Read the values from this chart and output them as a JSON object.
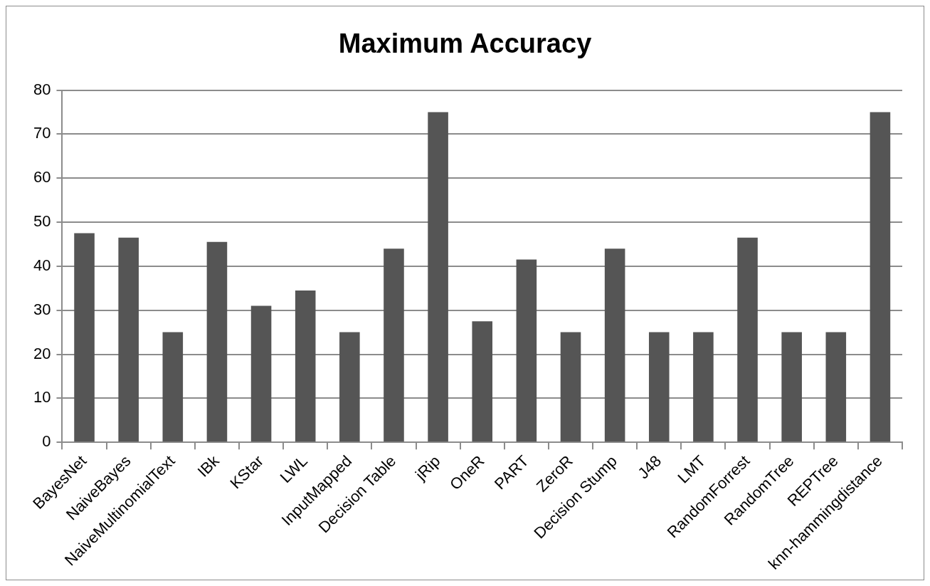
{
  "chart_data": {
    "type": "bar",
    "title": "Maximum Accuracy",
    "categories": [
      "BayesNet",
      "NaiveBayes",
      "NaiveMultinomialText",
      "IBk",
      "KStar",
      "LWL",
      "InputMapped",
      "Decision Table",
      "jRip",
      "OneR",
      "PART",
      "ZeroR",
      "Decision Stump",
      "J48",
      "LMT",
      "RandomForrest",
      "RandomTree",
      "REPTree",
      "knn-hammingdistance"
    ],
    "values": [
      47.5,
      46.5,
      25,
      45.5,
      31,
      34.5,
      25,
      44,
      75,
      27.5,
      41.5,
      25,
      44,
      25,
      25,
      46.5,
      25,
      25,
      75
    ],
    "color": "#555555",
    "ylim": [
      0,
      80
    ],
    "yticks": [
      0,
      10,
      20,
      30,
      40,
      50,
      60,
      70,
      80
    ],
    "grid": "y"
  }
}
